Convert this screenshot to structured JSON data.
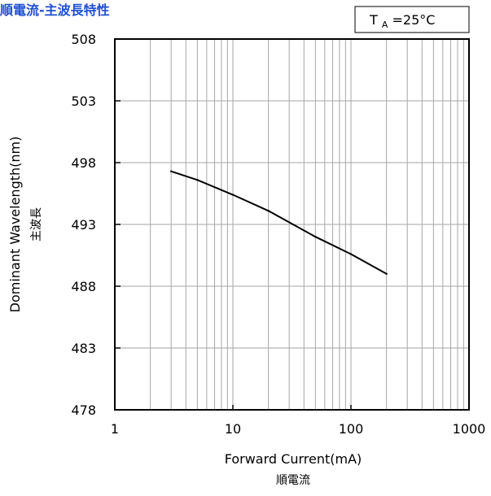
{
  "chart_data": {
    "type": "line",
    "title": "順電流-主波長特性",
    "xlabel": "Forward Current(mA)",
    "xlabel_sub": "順電流",
    "ylabel": "Dominant Wavelength(nm)",
    "ylabel_sub": "主波長",
    "x_scale": "log",
    "xlim": [
      1,
      1000
    ],
    "ylim": [
      478,
      508
    ],
    "x_ticks": [
      "1",
      "10",
      "100",
      "1000"
    ],
    "y_ticks": [
      "508",
      "503",
      "498",
      "493",
      "488",
      "483",
      "478"
    ],
    "grid": true,
    "annotation": {
      "prefix": "T",
      "subscript": "A",
      "suffix": "=25°C"
    },
    "series": [
      {
        "x": [
          3,
          5,
          10,
          20,
          50,
          100,
          200
        ],
        "y": [
          497.3,
          496.6,
          495.4,
          494.1,
          492.0,
          490.6,
          489.0
        ]
      }
    ],
    "colors": {
      "title": "#1f4fd1",
      "line": "#000000",
      "grid": "#a6a6a6",
      "frame": "#000000"
    }
  }
}
